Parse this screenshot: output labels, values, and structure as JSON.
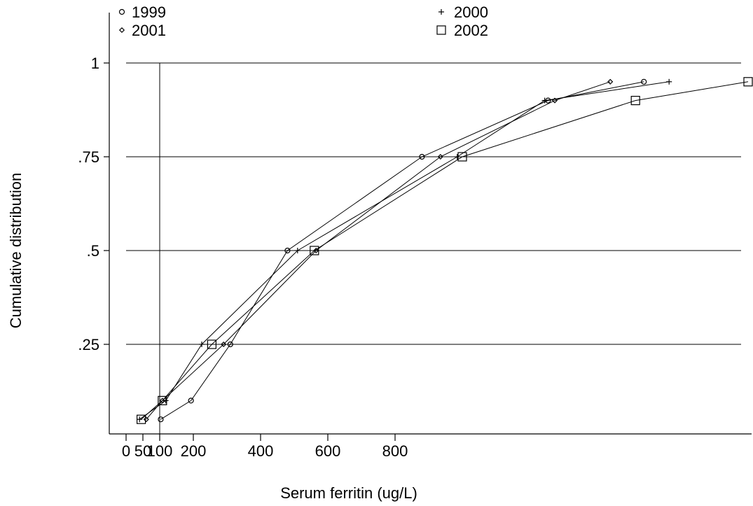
{
  "chart_data": {
    "type": "line",
    "title": "",
    "xlabel": "Serum ferritin (ug/L)",
    "ylabel": "Cumulative distribution",
    "xlim": [
      -45,
      1850
    ],
    "ylim": [
      0,
      1.07
    ],
    "grid": "horizontal",
    "reference_line_x": 100,
    "legend_position": "top",
    "x_ticks": [
      {
        "value": 0,
        "label": "0"
      },
      {
        "value": 50,
        "label": "50"
      },
      {
        "value": 100,
        "label": "100"
      },
      {
        "value": 200,
        "label": "200"
      },
      {
        "value": 400,
        "label": "400"
      },
      {
        "value": 600,
        "label": "600"
      },
      {
        "value": 800,
        "label": "800"
      }
    ],
    "y_ticks": [
      {
        "value": 0.25,
        "label": ".25"
      },
      {
        "value": 0.5,
        "label": ".5"
      },
      {
        "value": 0.75,
        "label": ".75"
      },
      {
        "value": 1,
        "label": "1"
      }
    ],
    "series": [
      {
        "name": "1999",
        "marker": "circle",
        "points": [
          [
            103,
            0.05
          ],
          [
            193,
            0.1
          ],
          [
            310,
            0.25
          ],
          [
            480,
            0.5
          ],
          [
            880,
            0.75
          ],
          [
            1255,
            0.9
          ],
          [
            1540,
            0.95
          ]
        ]
      },
      {
        "name": "2000",
        "marker": "plus",
        "points": [
          [
            40,
            0.05
          ],
          [
            118,
            0.1
          ],
          [
            225,
            0.25
          ],
          [
            510,
            0.5
          ],
          [
            985,
            0.75
          ],
          [
            1245,
            0.9
          ],
          [
            1615,
            0.95
          ]
        ]
      },
      {
        "name": "2001",
        "marker": "diamond",
        "points": [
          [
            60,
            0.05
          ],
          [
            108,
            0.1
          ],
          [
            290,
            0.25
          ],
          [
            565,
            0.5
          ],
          [
            935,
            0.75
          ],
          [
            1275,
            0.9
          ],
          [
            1440,
            0.95
          ]
        ]
      },
      {
        "name": "2002",
        "marker": "square",
        "points": [
          [
            45,
            0.05
          ],
          [
            108,
            0.1
          ],
          [
            255,
            0.25
          ],
          [
            560,
            0.5
          ],
          [
            1000,
            0.75
          ],
          [
            1515,
            0.9
          ],
          [
            1850,
            0.95
          ]
        ]
      }
    ]
  }
}
